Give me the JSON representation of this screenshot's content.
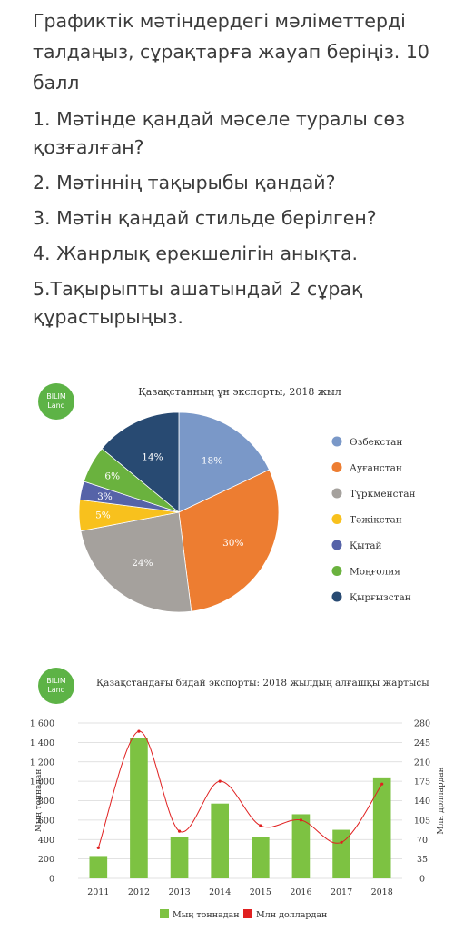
{
  "task": {
    "intro": "Графиктік мәтіндердегі мәліметтерді талдаңыз, сұрақтарға жауап беріңіз. 10 балл",
    "questions": [
      "1. Мәтінде қандай мәселе туралы сөз қозғалған?",
      "2. Мәтіннің тақырыбы қандай?",
      "3. Мәтін қандай стильде берілген?",
      "4. Жанрлық ерекшелігін анықта.",
      "5.Тақырыпты ашатындай 2 сұрақ құрастырыңыз."
    ]
  },
  "logo": {
    "line1": "BILIM",
    "line2": "Land",
    "color": "#5db346"
  },
  "chart_data": [
    {
      "type": "pie",
      "title": "Қазақстанның ұн экспорты, 2018 жыл",
      "legend_position": "right",
      "slices": [
        {
          "name": "Өзбекстан",
          "value": 18,
          "label": "18%",
          "color": "#7a98c8"
        },
        {
          "name": "Ауғанстан",
          "value": 30,
          "label": "30%",
          "color": "#ed7d31"
        },
        {
          "name": "Түркменстан",
          "value": 24,
          "label": "24%",
          "color": "#a5a19d"
        },
        {
          "name": "Тәжікстан",
          "value": 5,
          "label": "5%",
          "color": "#f8c11d"
        },
        {
          "name": "Қытай",
          "value": 3,
          "label": "3%",
          "color": "#5663a8"
        },
        {
          "name": "Моңғолия",
          "value": 6,
          "label": "6%",
          "color": "#6ab23e"
        },
        {
          "name": "Қырғызстан",
          "value": 14,
          "label": "14%",
          "color": "#284a72"
        }
      ]
    },
    {
      "type": "bar",
      "title": "Қазақстандағы бидай экспорты: 2018 жылдың алғашқы жартысы",
      "categories": [
        "2011",
        "2012",
        "2013",
        "2014",
        "2015",
        "2016",
        "2017",
        "2018"
      ],
      "ylabel": "Мың тоннадан",
      "y2label": "Млн доллардан",
      "ylim": [
        0,
        1600
      ],
      "y2lim": [
        0,
        280
      ],
      "yticks": [
        "0",
        "200",
        "400",
        "600",
        "800",
        "1 000",
        "1 200",
        "1 400",
        "1 600"
      ],
      "y2ticks": [
        "0",
        "35",
        "70",
        "105",
        "140",
        "175",
        "210",
        "245",
        "280"
      ],
      "grid": true,
      "legend_position": "bottom",
      "series": [
        {
          "name": "Мың тоннадан",
          "type": "bar",
          "axis": "left",
          "color": "#7dc242",
          "values": [
            230,
            1450,
            430,
            770,
            430,
            660,
            500,
            1040
          ]
        },
        {
          "name": "Млн доллардан",
          "type": "line",
          "axis": "right",
          "color": "#e02020",
          "values": [
            55,
            265,
            85,
            175,
            95,
            105,
            65,
            170
          ]
        }
      ]
    }
  ]
}
